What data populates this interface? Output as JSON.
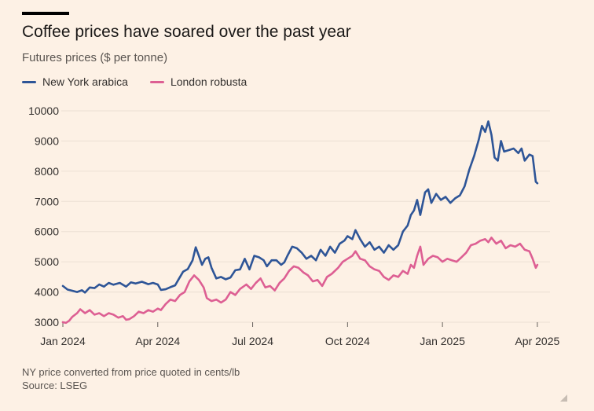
{
  "top_rule": "top-rule",
  "title": "Coffee prices have soared over the past year",
  "subtitle": "Futures prices ($ per tonne)",
  "colors": {
    "arabica": "#2e5597",
    "robusta": "#dd5f93",
    "grid": "#ece0d4",
    "text": "#33302e"
  },
  "footer": {
    "note": "NY price converted from price quoted in cents/lb",
    "source": "Source: LSEG"
  },
  "chart_data": {
    "type": "line",
    "title": "Coffee prices have soared over the past year",
    "ylabel": "Futures prices ($ per tonne)",
    "ylim": [
      3000,
      10000
    ],
    "yticks": [
      3000,
      4000,
      5000,
      6000,
      7000,
      8000,
      9000,
      10000
    ],
    "ytick_labels": [
      "3000",
      "4000",
      "5000",
      "6000",
      "7000",
      "8000",
      "9000",
      "10000"
    ],
    "xlim": [
      0,
      15.4
    ],
    "xticks": [
      {
        "pos": 0,
        "label": "Jan 2024"
      },
      {
        "pos": 3,
        "label": "Apr 2024"
      },
      {
        "pos": 6,
        "label": "Jul 2024"
      },
      {
        "pos": 9,
        "label": "Oct 2024"
      },
      {
        "pos": 12,
        "label": "Jan 2025"
      },
      {
        "pos": 15,
        "label": "Apr 2025"
      }
    ],
    "x_unit": "months since Jan 2024",
    "grid": true,
    "series": [
      {
        "name": "New York arabica",
        "color": "#2e5597",
        "points": [
          [
            0,
            4200
          ],
          [
            0.15,
            4080
          ],
          [
            0.3,
            4040
          ],
          [
            0.45,
            4000
          ],
          [
            0.6,
            4060
          ],
          [
            0.7,
            3980
          ],
          [
            0.85,
            4150
          ],
          [
            1.0,
            4130
          ],
          [
            1.15,
            4250
          ],
          [
            1.3,
            4180
          ],
          [
            1.45,
            4300
          ],
          [
            1.6,
            4240
          ],
          [
            1.8,
            4300
          ],
          [
            2.0,
            4180
          ],
          [
            2.15,
            4320
          ],
          [
            2.3,
            4280
          ],
          [
            2.5,
            4340
          ],
          [
            2.7,
            4260
          ],
          [
            2.85,
            4300
          ],
          [
            3.0,
            4250
          ],
          [
            3.1,
            4070
          ],
          [
            3.25,
            4090
          ],
          [
            3.4,
            4160
          ],
          [
            3.55,
            4220
          ],
          [
            3.65,
            4400
          ],
          [
            3.8,
            4670
          ],
          [
            3.95,
            4760
          ],
          [
            4.1,
            5050
          ],
          [
            4.2,
            5480
          ],
          [
            4.3,
            5200
          ],
          [
            4.4,
            4900
          ],
          [
            4.5,
            5100
          ],
          [
            4.6,
            5150
          ],
          [
            4.7,
            4800
          ],
          [
            4.85,
            4450
          ],
          [
            5.0,
            4500
          ],
          [
            5.15,
            4420
          ],
          [
            5.3,
            4480
          ],
          [
            5.45,
            4720
          ],
          [
            5.6,
            4750
          ],
          [
            5.75,
            5100
          ],
          [
            5.9,
            4750
          ],
          [
            6.05,
            5200
          ],
          [
            6.2,
            5150
          ],
          [
            6.35,
            5050
          ],
          [
            6.45,
            4850
          ],
          [
            6.6,
            5050
          ],
          [
            6.75,
            5050
          ],
          [
            6.9,
            4900
          ],
          [
            7.0,
            4980
          ],
          [
            7.1,
            5200
          ],
          [
            7.25,
            5500
          ],
          [
            7.4,
            5450
          ],
          [
            7.55,
            5300
          ],
          [
            7.7,
            5100
          ],
          [
            7.85,
            5200
          ],
          [
            8.0,
            5050
          ],
          [
            8.15,
            5400
          ],
          [
            8.3,
            5200
          ],
          [
            8.45,
            5500
          ],
          [
            8.6,
            5300
          ],
          [
            8.75,
            5600
          ],
          [
            8.9,
            5700
          ],
          [
            9.0,
            5850
          ],
          [
            9.15,
            5750
          ],
          [
            9.25,
            6050
          ],
          [
            9.4,
            5750
          ],
          [
            9.55,
            5500
          ],
          [
            9.7,
            5650
          ],
          [
            9.85,
            5400
          ],
          [
            10.0,
            5500
          ],
          [
            10.15,
            5300
          ],
          [
            10.3,
            5550
          ],
          [
            10.45,
            5400
          ],
          [
            10.6,
            5550
          ],
          [
            10.75,
            6000
          ],
          [
            10.9,
            6200
          ],
          [
            11.0,
            6550
          ],
          [
            11.1,
            6700
          ],
          [
            11.2,
            7050
          ],
          [
            11.3,
            6550
          ],
          [
            11.45,
            7300
          ],
          [
            11.55,
            7400
          ],
          [
            11.65,
            6950
          ],
          [
            11.8,
            7250
          ],
          [
            11.95,
            7050
          ],
          [
            12.1,
            7150
          ],
          [
            12.25,
            6950
          ],
          [
            12.4,
            7100
          ],
          [
            12.55,
            7200
          ],
          [
            12.7,
            7500
          ],
          [
            12.85,
            8050
          ],
          [
            13.0,
            8500
          ],
          [
            13.15,
            9050
          ],
          [
            13.25,
            9500
          ],
          [
            13.35,
            9300
          ],
          [
            13.45,
            9650
          ],
          [
            13.55,
            9200
          ],
          [
            13.65,
            8450
          ],
          [
            13.75,
            8350
          ],
          [
            13.85,
            9000
          ],
          [
            13.95,
            8650
          ],
          [
            14.1,
            8700
          ],
          [
            14.25,
            8750
          ],
          [
            14.4,
            8600
          ],
          [
            14.5,
            8750
          ],
          [
            14.6,
            8350
          ],
          [
            14.75,
            8550
          ],
          [
            14.85,
            8500
          ],
          [
            14.95,
            7650
          ],
          [
            15.0,
            7600
          ]
        ]
      },
      {
        "name": "London robusta",
        "color": "#dd5f93",
        "points": [
          [
            0,
            3000
          ],
          [
            0.1,
            2980
          ],
          [
            0.2,
            3050
          ],
          [
            0.3,
            3180
          ],
          [
            0.45,
            3300
          ],
          [
            0.55,
            3430
          ],
          [
            0.7,
            3300
          ],
          [
            0.85,
            3400
          ],
          [
            1.0,
            3250
          ],
          [
            1.15,
            3300
          ],
          [
            1.3,
            3200
          ],
          [
            1.45,
            3300
          ],
          [
            1.6,
            3250
          ],
          [
            1.75,
            3150
          ],
          [
            1.9,
            3200
          ],
          [
            2.0,
            3080
          ],
          [
            2.1,
            3100
          ],
          [
            2.25,
            3200
          ],
          [
            2.4,
            3350
          ],
          [
            2.55,
            3300
          ],
          [
            2.7,
            3400
          ],
          [
            2.85,
            3350
          ],
          [
            3.0,
            3450
          ],
          [
            3.1,
            3400
          ],
          [
            3.25,
            3600
          ],
          [
            3.4,
            3750
          ],
          [
            3.55,
            3700
          ],
          [
            3.7,
            3900
          ],
          [
            3.85,
            4000
          ],
          [
            4.0,
            4350
          ],
          [
            4.15,
            4550
          ],
          [
            4.3,
            4400
          ],
          [
            4.45,
            4150
          ],
          [
            4.55,
            3800
          ],
          [
            4.7,
            3700
          ],
          [
            4.85,
            3750
          ],
          [
            5.0,
            3650
          ],
          [
            5.15,
            3750
          ],
          [
            5.3,
            4000
          ],
          [
            5.45,
            3900
          ],
          [
            5.6,
            4100
          ],
          [
            5.8,
            4250
          ],
          [
            5.95,
            4100
          ],
          [
            6.1,
            4300
          ],
          [
            6.25,
            4450
          ],
          [
            6.4,
            4150
          ],
          [
            6.55,
            4200
          ],
          [
            6.7,
            4050
          ],
          [
            6.85,
            4300
          ],
          [
            7.0,
            4450
          ],
          [
            7.15,
            4700
          ],
          [
            7.3,
            4850
          ],
          [
            7.45,
            4800
          ],
          [
            7.6,
            4650
          ],
          [
            7.75,
            4550
          ],
          [
            7.9,
            4350
          ],
          [
            8.05,
            4400
          ],
          [
            8.2,
            4200
          ],
          [
            8.35,
            4500
          ],
          [
            8.5,
            4600
          ],
          [
            8.7,
            4800
          ],
          [
            8.85,
            5000
          ],
          [
            9.0,
            5100
          ],
          [
            9.15,
            5200
          ],
          [
            9.25,
            5350
          ],
          [
            9.4,
            5100
          ],
          [
            9.55,
            5050
          ],
          [
            9.7,
            4850
          ],
          [
            9.85,
            4750
          ],
          [
            10.0,
            4700
          ],
          [
            10.15,
            4500
          ],
          [
            10.3,
            4400
          ],
          [
            10.45,
            4550
          ],
          [
            10.6,
            4500
          ],
          [
            10.75,
            4700
          ],
          [
            10.9,
            4600
          ],
          [
            11.0,
            4900
          ],
          [
            11.1,
            4800
          ],
          [
            11.2,
            5200
          ],
          [
            11.3,
            5500
          ],
          [
            11.4,
            4900
          ],
          [
            11.55,
            5100
          ],
          [
            11.7,
            5200
          ],
          [
            11.85,
            5150
          ],
          [
            12.0,
            5000
          ],
          [
            12.15,
            5100
          ],
          [
            12.3,
            5050
          ],
          [
            12.45,
            5000
          ],
          [
            12.6,
            5150
          ],
          [
            12.75,
            5300
          ],
          [
            12.9,
            5550
          ],
          [
            13.05,
            5600
          ],
          [
            13.2,
            5700
          ],
          [
            13.35,
            5750
          ],
          [
            13.45,
            5650
          ],
          [
            13.55,
            5800
          ],
          [
            13.7,
            5600
          ],
          [
            13.85,
            5700
          ],
          [
            14.0,
            5450
          ],
          [
            14.15,
            5550
          ],
          [
            14.3,
            5500
          ],
          [
            14.45,
            5600
          ],
          [
            14.6,
            5400
          ],
          [
            14.75,
            5350
          ],
          [
            14.85,
            5100
          ],
          [
            14.95,
            4800
          ],
          [
            15.0,
            4900
          ]
        ]
      }
    ]
  }
}
